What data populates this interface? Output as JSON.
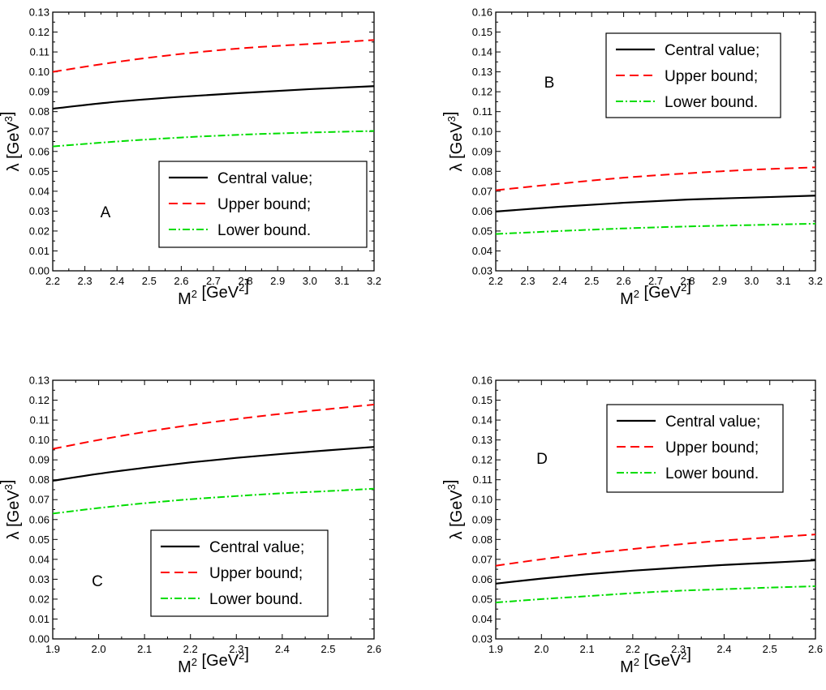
{
  "chart_data": [
    {
      "type": "line",
      "panel_label": "A",
      "xlabel": "M",
      "xlabel_sup": "2",
      "xlabel_unit_pre": " [GeV",
      "xlabel_unit_sup": "2",
      "xlabel_unit_post": "]",
      "ylabel": "λ",
      "ylabel_unit_pre": " [GeV",
      "ylabel_unit_sup": "3",
      "ylabel_unit_post": "]",
      "xlim": [
        2.2,
        3.2
      ],
      "ylim": [
        0.0,
        0.13
      ],
      "xticks": [
        "2.2",
        "2.3",
        "2.4",
        "2.5",
        "2.6",
        "2.7",
        "2.8",
        "2.9",
        "3.0",
        "3.1",
        "3.2"
      ],
      "yticks": [
        "0.00",
        "0.01",
        "0.02",
        "0.03",
        "0.04",
        "0.05",
        "0.06",
        "0.07",
        "0.08",
        "0.09",
        "0.10",
        "0.11",
        "0.12",
        "0.13"
      ],
      "legend_position": "lower-right",
      "x": [
        2.2,
        2.4,
        2.6,
        2.8,
        3.0,
        3.2
      ],
      "series": [
        {
          "name": "Central value;",
          "style": "solid",
          "color": "#000000",
          "values": [
            0.0815,
            0.085,
            0.0875,
            0.0895,
            0.0913,
            0.0928
          ]
        },
        {
          "name": "Upper bound;",
          "style": "dashed",
          "color": "#ff0000",
          "values": [
            0.1,
            0.105,
            0.109,
            0.112,
            0.114,
            0.116
          ]
        },
        {
          "name": "Lower bound.",
          "style": "dashdot",
          "color": "#00dd00",
          "values": [
            0.0625,
            0.065,
            0.067,
            0.0685,
            0.0695,
            0.0703
          ]
        }
      ]
    },
    {
      "type": "line",
      "panel_label": "B",
      "xlabel": "M",
      "xlabel_sup": "2",
      "xlabel_unit_pre": " [GeV",
      "xlabel_unit_sup": "2",
      "xlabel_unit_post": "]",
      "ylabel": "λ",
      "ylabel_unit_pre": " [GeV",
      "ylabel_unit_sup": "3",
      "ylabel_unit_post": "]",
      "xlim": [
        2.2,
        3.2
      ],
      "ylim": [
        0.03,
        0.16
      ],
      "xticks": [
        "2.2",
        "2.3",
        "2.4",
        "2.5",
        "2.6",
        "2.7",
        "2.8",
        "2.9",
        "3.0",
        "3.1",
        "3.2"
      ],
      "yticks": [
        "0.03",
        "0.04",
        "0.05",
        "0.06",
        "0.07",
        "0.08",
        "0.09",
        "0.10",
        "0.11",
        "0.12",
        "0.13",
        "0.14",
        "0.15",
        "0.16"
      ],
      "legend_position": "top-right",
      "x": [
        2.2,
        2.4,
        2.6,
        2.8,
        3.0,
        3.2
      ],
      "series": [
        {
          "name": "Central value;",
          "style": "solid",
          "color": "#000000",
          "values": [
            0.0598,
            0.0622,
            0.0642,
            0.0658,
            0.0668,
            0.0678
          ]
        },
        {
          "name": "Upper bound;",
          "style": "dashed",
          "color": "#ff0000",
          "values": [
            0.0705,
            0.0738,
            0.0768,
            0.079,
            0.0808,
            0.082
          ]
        },
        {
          "name": "Lower bound.",
          "style": "dashdot",
          "color": "#00dd00",
          "values": [
            0.0485,
            0.05,
            0.0513,
            0.0523,
            0.053,
            0.0537
          ]
        }
      ]
    },
    {
      "type": "line",
      "panel_label": "C",
      "xlabel": "M",
      "xlabel_sup": "2",
      "xlabel_unit_pre": " [GeV",
      "xlabel_unit_sup": "2",
      "xlabel_unit_post": "]",
      "ylabel": "λ",
      "ylabel_unit_pre": " [GeV",
      "ylabel_unit_sup": "3",
      "ylabel_unit_post": "]",
      "xlim": [
        1.9,
        2.6
      ],
      "ylim": [
        0.0,
        0.13
      ],
      "xticks": [
        "1.9",
        "2.0",
        "2.1",
        "2.2",
        "2.3",
        "2.4",
        "2.5",
        "2.6"
      ],
      "yticks": [
        "0.00",
        "0.01",
        "0.02",
        "0.03",
        "0.04",
        "0.05",
        "0.06",
        "0.07",
        "0.08",
        "0.09",
        "0.10",
        "0.11",
        "0.12",
        "0.13"
      ],
      "legend_position": "lower-right",
      "x": [
        1.9,
        2.0,
        2.1,
        2.2,
        2.3,
        2.4,
        2.5,
        2.6
      ],
      "series": [
        {
          "name": "Central value;",
          "style": "solid",
          "color": "#000000",
          "values": [
            0.0795,
            0.083,
            0.086,
            0.0887,
            0.091,
            0.093,
            0.0948,
            0.0965
          ]
        },
        {
          "name": "Upper bound;",
          "style": "dashed",
          "color": "#ff0000",
          "values": [
            0.0955,
            0.1,
            0.104,
            0.1075,
            0.1105,
            0.1132,
            0.1155,
            0.1178
          ]
        },
        {
          "name": "Lower bound.",
          "style": "dashdot",
          "color": "#00dd00",
          "values": [
            0.063,
            0.0658,
            0.0682,
            0.0702,
            0.0718,
            0.0732,
            0.0743,
            0.0755
          ]
        }
      ]
    },
    {
      "type": "line",
      "panel_label": "D",
      "xlabel": "M",
      "xlabel_sup": "2",
      "xlabel_unit_pre": " [GeV",
      "xlabel_unit_sup": "2",
      "xlabel_unit_post": "]",
      "ylabel": "λ",
      "ylabel_unit_pre": " [GeV",
      "ylabel_unit_sup": "3",
      "ylabel_unit_post": "]",
      "xlim": [
        1.9,
        2.6
      ],
      "ylim": [
        0.03,
        0.16
      ],
      "xticks": [
        "1.9",
        "2.0",
        "2.1",
        "2.2",
        "2.3",
        "2.4",
        "2.5",
        "2.6"
      ],
      "yticks": [
        "0.03",
        "0.04",
        "0.05",
        "0.06",
        "0.07",
        "0.08",
        "0.09",
        "0.10",
        "0.11",
        "0.12",
        "0.13",
        "0.14",
        "0.15",
        "0.16"
      ],
      "legend_position": "top-right",
      "x": [
        1.9,
        2.0,
        2.1,
        2.2,
        2.3,
        2.4,
        2.5,
        2.6
      ],
      "series": [
        {
          "name": "Central value;",
          "style": "solid",
          "color": "#000000",
          "values": [
            0.0578,
            0.0603,
            0.0625,
            0.0643,
            0.0658,
            0.0672,
            0.0683,
            0.0695
          ]
        },
        {
          "name": "Upper bound;",
          "style": "dashed",
          "color": "#ff0000",
          "values": [
            0.0668,
            0.07,
            0.0728,
            0.0752,
            0.0775,
            0.0795,
            0.081,
            0.0825
          ]
        },
        {
          "name": "Lower bound.",
          "style": "dashdot",
          "color": "#00dd00",
          "values": [
            0.0483,
            0.05,
            0.0515,
            0.053,
            0.0542,
            0.055,
            0.0558,
            0.0565
          ]
        }
      ]
    }
  ]
}
